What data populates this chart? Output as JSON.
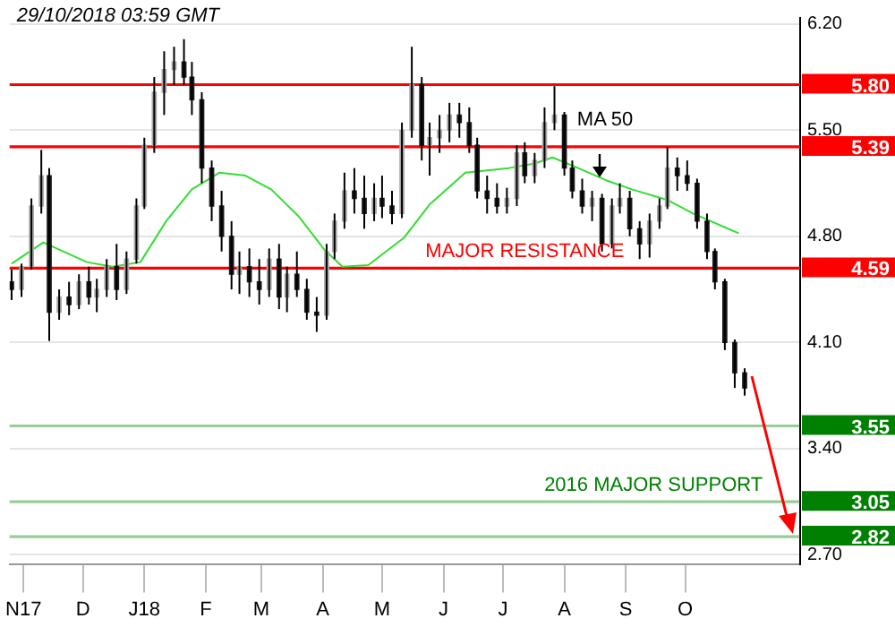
{
  "chart_data": {
    "type": "candlestick",
    "annotations": [
      "29/10/2018 03:59 GMT",
      {
        "text": "MAJOR RESISTANCE",
        "x": "2018-07-12",
        "y": 4.59
      },
      {
        "text": "2016 MAJOR SUPPORT",
        "x": "2018-09-15",
        "y": 3.05
      }
    ],
    "x": [
      "2017-10-26",
      "2017-10-31",
      "2017-11-05",
      "2017-11-10",
      "2017-11-14",
      "2017-11-19",
      "2017-11-24",
      "2017-11-29",
      "2017-12-04",
      "2017-12-08",
      "2017-12-13",
      "2017-12-18",
      "2017-12-23",
      "2017-12-28",
      "2018-01-01",
      "2018-01-06",
      "2018-01-11",
      "2018-01-16",
      "2018-01-21",
      "2018-01-25",
      "2018-01-30",
      "2018-02-04",
      "2018-02-09",
      "2018-02-14",
      "2018-02-18",
      "2018-02-23",
      "2018-02-28",
      "2018-03-05",
      "2018-03-10",
      "2018-03-14",
      "2018-03-19",
      "2018-03-24",
      "2018-03-29",
      "2018-04-03",
      "2018-04-07",
      "2018-04-12",
      "2018-04-17",
      "2018-04-22",
      "2018-04-27",
      "2018-05-01",
      "2018-05-06",
      "2018-05-11",
      "2018-05-16",
      "2018-05-21",
      "2018-05-25",
      "2018-05-30",
      "2018-06-04",
      "2018-06-09",
      "2018-06-14",
      "2018-06-18",
      "2018-06-23",
      "2018-06-28",
      "2018-07-03",
      "2018-07-08",
      "2018-07-12",
      "2018-07-17",
      "2018-07-22",
      "2018-07-27",
      "2018-08-01",
      "2018-08-05",
      "2018-08-10",
      "2018-08-15",
      "2018-08-20",
      "2018-08-25",
      "2018-08-29",
      "2018-09-03",
      "2018-09-08",
      "2018-09-13",
      "2018-09-18",
      "2018-09-22",
      "2018-09-27",
      "2018-10-02",
      "2018-10-07",
      "2018-10-12",
      "2018-10-16",
      "2018-10-21",
      "2018-10-26",
      "2018-10-31"
    ],
    "ohlc": [
      [
        4.5,
        4.58,
        4.38,
        4.45
      ],
      [
        4.45,
        4.62,
        4.4,
        4.6
      ],
      [
        4.6,
        5.05,
        4.58,
        5.0
      ],
      [
        5.0,
        5.37,
        4.95,
        5.2
      ],
      [
        5.2,
        5.25,
        4.11,
        4.3
      ],
      [
        4.3,
        4.45,
        4.25,
        4.4
      ],
      [
        4.4,
        4.5,
        4.28,
        4.35
      ],
      [
        4.35,
        4.55,
        4.32,
        4.5
      ],
      [
        4.5,
        4.6,
        4.35,
        4.4
      ],
      [
        4.4,
        4.52,
        4.3,
        4.45
      ],
      [
        4.45,
        4.65,
        4.4,
        4.6
      ],
      [
        4.6,
        4.75,
        4.38,
        4.45
      ],
      [
        4.45,
        4.7,
        4.42,
        4.65
      ],
      [
        4.65,
        5.05,
        4.62,
        5.0
      ],
      [
        5.0,
        5.45,
        4.98,
        5.4
      ],
      [
        5.4,
        5.85,
        5.35,
        5.75
      ],
      [
        5.75,
        6.02,
        5.6,
        5.9
      ],
      [
        5.9,
        6.05,
        5.8,
        5.95
      ],
      [
        5.95,
        6.1,
        5.8,
        5.85
      ],
      [
        5.85,
        5.95,
        5.6,
        5.7
      ],
      [
        5.7,
        5.75,
        5.15,
        5.25
      ],
      [
        5.25,
        5.3,
        4.9,
        5.0
      ],
      [
        5.0,
        5.1,
        4.7,
        4.8
      ],
      [
        4.8,
        4.9,
        4.45,
        4.55
      ],
      [
        4.55,
        4.7,
        4.42,
        4.6
      ],
      [
        4.6,
        4.72,
        4.4,
        4.5
      ],
      [
        4.5,
        4.65,
        4.35,
        4.45
      ],
      [
        4.45,
        4.72,
        4.4,
        4.65
      ],
      [
        4.65,
        4.75,
        4.32,
        4.4
      ],
      [
        4.4,
        4.6,
        4.3,
        4.55
      ],
      [
        4.55,
        4.7,
        4.4,
        4.45
      ],
      [
        4.45,
        4.52,
        4.25,
        4.3
      ],
      [
        4.3,
        4.4,
        4.17,
        4.28
      ],
      [
        4.28,
        4.75,
        4.25,
        4.7
      ],
      [
        4.7,
        4.95,
        4.65,
        4.9
      ],
      [
        4.9,
        5.22,
        4.85,
        5.1
      ],
      [
        5.1,
        5.25,
        4.95,
        5.05
      ],
      [
        5.05,
        5.2,
        4.85,
        4.95
      ],
      [
        4.95,
        5.15,
        4.9,
        5.05
      ],
      [
        5.05,
        5.2,
        4.92,
        5.0
      ],
      [
        5.0,
        5.1,
        4.88,
        4.95
      ],
      [
        4.95,
        5.55,
        4.92,
        5.5
      ],
      [
        5.5,
        6.05,
        5.45,
        5.8
      ],
      [
        5.8,
        5.85,
        5.3,
        5.4
      ],
      [
        5.4,
        5.55,
        5.2,
        5.45
      ],
      [
        5.45,
        5.6,
        5.35,
        5.5
      ],
      [
        5.5,
        5.68,
        5.42,
        5.6
      ],
      [
        5.6,
        5.68,
        5.45,
        5.55
      ],
      [
        5.55,
        5.65,
        5.35,
        5.4
      ],
      [
        5.4,
        5.45,
        5.05,
        5.1
      ],
      [
        5.1,
        5.2,
        4.95,
        5.05
      ],
      [
        5.05,
        5.15,
        4.95,
        5.0
      ],
      [
        5.0,
        5.12,
        4.95,
        5.05
      ],
      [
        5.05,
        5.4,
        5.0,
        5.35
      ],
      [
        5.35,
        5.42,
        5.15,
        5.2
      ],
      [
        5.2,
        5.35,
        5.15,
        5.3
      ],
      [
        5.3,
        5.65,
        5.25,
        5.55
      ],
      [
        5.55,
        5.79,
        5.5,
        5.6
      ],
      [
        5.6,
        5.62,
        5.2,
        5.25
      ],
      [
        5.25,
        5.3,
        5.05,
        5.1
      ],
      [
        5.1,
        5.18,
        4.95,
        5.0
      ],
      [
        5.0,
        5.1,
        4.9,
        5.05
      ],
      [
        5.05,
        5.08,
        4.7,
        4.75
      ],
      [
        4.75,
        5.05,
        4.72,
        5.0
      ],
      [
        5.0,
        5.15,
        4.95,
        5.05
      ],
      [
        5.05,
        5.1,
        4.8,
        4.85
      ],
      [
        4.85,
        4.9,
        4.65,
        4.75
      ],
      [
        4.75,
        4.95,
        4.66,
        4.9
      ],
      [
        4.9,
        5.05,
        4.85,
        5.0
      ],
      [
        5.0,
        5.39,
        4.98,
        5.25
      ],
      [
        5.25,
        5.32,
        5.1,
        5.2
      ],
      [
        5.2,
        5.3,
        5.1,
        5.15
      ],
      [
        5.15,
        5.18,
        4.85,
        4.9
      ],
      [
        4.9,
        4.95,
        4.65,
        4.7
      ],
      [
        4.7,
        4.72,
        4.45,
        4.5
      ],
      [
        4.5,
        4.52,
        4.05,
        4.1
      ],
      [
        4.1,
        4.12,
        3.8,
        3.9
      ],
      [
        3.9,
        3.93,
        3.75,
        3.8
      ]
    ],
    "series": [
      {
        "name": "MA 50",
        "type": "line",
        "color": "#33dd33",
        "x": [
          "2017-10-26",
          "2017-11-11",
          "2017-12-03",
          "2017-12-16",
          "2017-12-30",
          "2018-01-12",
          "2018-01-25",
          "2018-02-08",
          "2018-02-21",
          "2018-03-06",
          "2018-03-20",
          "2018-04-02",
          "2018-04-11",
          "2018-04-24",
          "2018-05-12",
          "2018-05-25",
          "2018-06-12",
          "2018-07-04",
          "2018-07-17",
          "2018-07-26",
          "2018-08-08",
          "2018-08-22",
          "2018-09-04",
          "2018-09-22",
          "2018-10-05",
          "2018-10-28"
        ],
        "values": [
          4.62,
          4.76,
          4.63,
          4.6,
          4.63,
          4.9,
          5.11,
          5.22,
          5.2,
          5.11,
          4.93,
          4.71,
          4.6,
          4.61,
          4.79,
          5.01,
          5.22,
          5.25,
          5.28,
          5.32,
          5.25,
          5.17,
          5.11,
          5.04,
          4.95,
          4.82
        ]
      }
    ],
    "ref_lines": [
      {
        "axis": "y",
        "value": 5.8,
        "label": "5.80",
        "color": "#ff0000"
      },
      {
        "axis": "y",
        "value": 5.39,
        "label": "5.39",
        "color": "#ff0000"
      },
      {
        "axis": "y",
        "value": 4.59,
        "label": "4.59",
        "color": "#ff0000"
      },
      {
        "axis": "y",
        "value": 3.55,
        "label": "3.55",
        "color": "#008000"
      },
      {
        "axis": "y",
        "value": 3.05,
        "label": "3.05",
        "color": "#008000"
      },
      {
        "axis": "y",
        "value": 2.82,
        "label": "2.82",
        "color": "#008000"
      }
    ],
    "xlim": [
      "2017-10-25",
      "2018-11-28"
    ],
    "xticks": [
      {
        "value": "2017-11-01",
        "label": "N17"
      },
      {
        "value": "2017-12-01",
        "label": "D"
      },
      {
        "value": "2018-01-01",
        "label": "J18"
      },
      {
        "value": "2018-02-01",
        "label": "F"
      },
      {
        "value": "2018-03-01",
        "label": "M"
      },
      {
        "value": "2018-04-01",
        "label": "A"
      },
      {
        "value": "2018-05-01",
        "label": "M"
      },
      {
        "value": "2018-06-01",
        "label": "J"
      },
      {
        "value": "2018-07-01",
        "label": "J"
      },
      {
        "value": "2018-08-01",
        "label": "A"
      },
      {
        "value": "2018-09-01",
        "label": "S"
      },
      {
        "value": "2018-10-01",
        "label": "O"
      }
    ],
    "ylim": [
      2.64,
      6.24
    ],
    "yticks": [
      {
        "value": 2.7,
        "label": "2.70"
      },
      {
        "value": 3.4,
        "label": "3.40"
      },
      {
        "value": 4.1,
        "label": "4.10"
      },
      {
        "value": 4.8,
        "label": "4.80"
      },
      {
        "value": 5.5,
        "label": "5.50"
      },
      {
        "value": 6.2,
        "label": "6.20"
      }
    ],
    "grid": "y",
    "legend": false
  }
}
